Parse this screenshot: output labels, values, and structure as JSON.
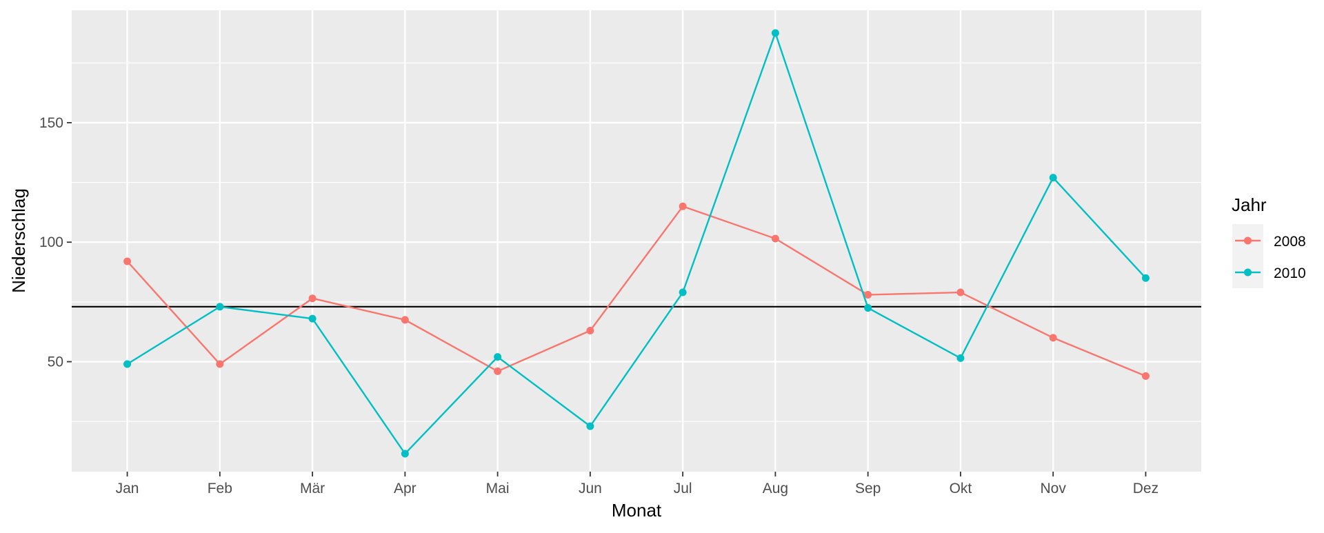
{
  "chart_data": {
    "type": "line",
    "title": "",
    "xlabel": "Monat",
    "ylabel": "Niederschlag",
    "categories": [
      "Jan",
      "Feb",
      "Mär",
      "Apr",
      "Mai",
      "Jun",
      "Jul",
      "Aug",
      "Sep",
      "Okt",
      "Nov",
      "Dez"
    ],
    "yticks": [
      50,
      100,
      150
    ],
    "ylim": [
      4,
      197
    ],
    "grid": true,
    "reference_line": 73,
    "legend": {
      "title": "Jahr",
      "position": "right"
    },
    "series": [
      {
        "name": "2008",
        "color": "#F8766D",
        "values": [
          92,
          49,
          76.5,
          67.5,
          46,
          63,
          115,
          101.5,
          78,
          79,
          60,
          44
        ]
      },
      {
        "name": "2010",
        "color": "#00BFC4",
        "values": [
          49,
          73,
          68,
          11.5,
          52,
          23,
          79,
          187.5,
          72.5,
          51.5,
          127,
          85
        ]
      }
    ]
  }
}
